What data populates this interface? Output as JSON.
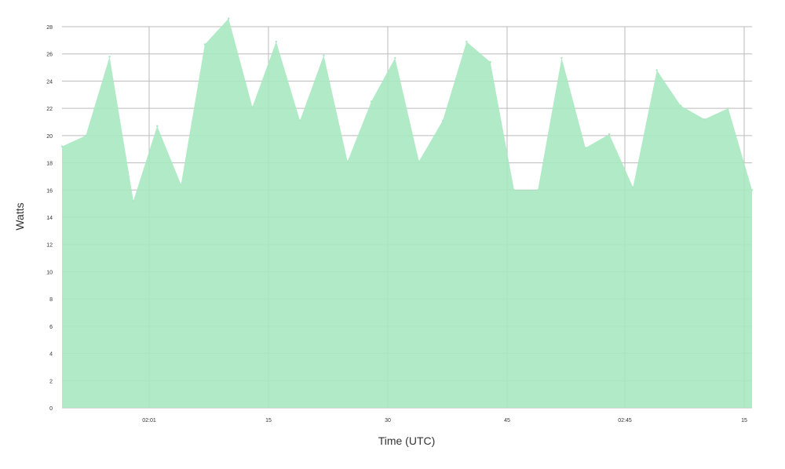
{
  "chart_data": {
    "type": "area",
    "title": "",
    "xlabel": "Time (UTC)",
    "ylabel": "Watts",
    "x_tick_labels": [
      "02:01",
      "15",
      "30",
      "45",
      "02:45",
      "15"
    ],
    "ylim": [
      0,
      28
    ],
    "y_ticks": [
      0,
      2,
      4,
      6,
      8,
      10,
      12,
      14,
      16,
      18,
      20,
      22,
      24,
      26,
      28
    ],
    "grid": true,
    "legend": "none",
    "fill_color": "#a8e8c0",
    "grid_color": "#bbbbbb",
    "series": [
      {
        "values": [
          19.2,
          20.0,
          25.8,
          15.2,
          20.7,
          16.4,
          26.7,
          28.6,
          22.1,
          26.9,
          21.1,
          25.9,
          18.1,
          22.5,
          25.7,
          18.1,
          21.1,
          26.9,
          25.4,
          16.0,
          16.0,
          25.7,
          19.1,
          20.1,
          16.2,
          24.8,
          22.2,
          21.2,
          22.0,
          16.0
        ]
      }
    ]
  }
}
